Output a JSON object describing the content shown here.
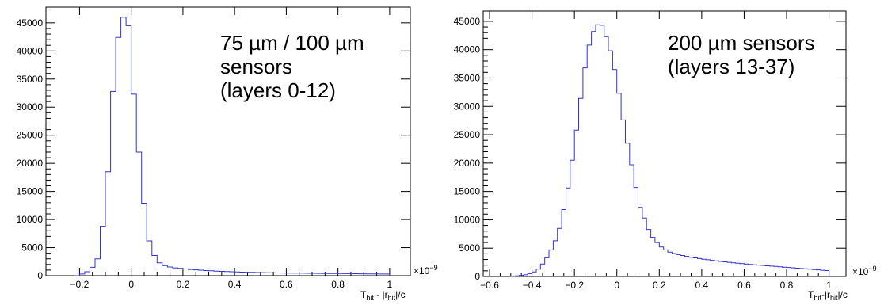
{
  "chart_data": [
    {
      "type": "histogram",
      "annotation": [
        "75 µm / 100 µm",
        "sensors",
        "(layers 0-12)"
      ],
      "xlabel": {
        "main": "T",
        "sub1": "hit",
        "mid": " - |r",
        "sub2": "hit",
        "tail": "|/c"
      },
      "x_exponent_label": "×10",
      "x_exponent_power": "−9",
      "xlim": [
        -0.33,
        1.08
      ],
      "ylim": [
        0,
        47800
      ],
      "x_ticks": [
        -0.2,
        0,
        0.2,
        0.4,
        0.6,
        0.8,
        1
      ],
      "x_tick_labels": [
        "−0.2",
        "0",
        "0.2",
        "0.4",
        "0.6",
        "0.8",
        "1"
      ],
      "y_ticks": [
        0,
        5000,
        10000,
        15000,
        20000,
        25000,
        30000,
        35000,
        40000,
        45000
      ],
      "y_tick_labels": [
        "0",
        "5000",
        "10000",
        "15000",
        "20000",
        "25000",
        "30000",
        "35000",
        "40000",
        "45000"
      ],
      "bin_width": 0.02,
      "bin_start": -0.22,
      "values": [
        0,
        300,
        700,
        1500,
        3000,
        8800,
        18500,
        32800,
        42400,
        46000,
        44500,
        32300,
        22000,
        12900,
        6200,
        3600,
        2300,
        1800,
        1550,
        1400,
        1300,
        1200,
        1120,
        1050,
        980,
        920,
        870,
        820,
        780,
        740,
        700,
        670,
        640,
        610,
        590,
        570,
        550,
        530,
        510,
        490,
        480,
        470,
        460,
        450,
        440,
        430,
        420,
        410,
        400,
        400,
        390,
        380,
        370,
        360,
        350,
        340,
        330,
        320,
        310,
        300,
        290
      ]
    },
    {
      "type": "histogram",
      "annotation": [
        "200 µm sensors",
        "(layers 13-37)"
      ],
      "xlabel": {
        "main": "T",
        "sub1": "hit",
        "mid": "-|r",
        "sub2": "hit",
        "tail": "|/c"
      },
      "x_exponent_label": "×10",
      "x_exponent_power": "−9",
      "xlim": [
        -0.63,
        1.08
      ],
      "ylim": [
        0,
        46800
      ],
      "x_ticks": [
        -0.6,
        -0.4,
        -0.2,
        0,
        0.2,
        0.4,
        0.6,
        0.8,
        1
      ],
      "x_tick_labels": [
        "−0.6",
        "−0.4",
        "−0.2",
        "0",
        "0.2",
        "0.4",
        "0.6",
        "0.8",
        "1"
      ],
      "y_ticks": [
        0,
        5000,
        10000,
        15000,
        20000,
        25000,
        30000,
        35000,
        40000,
        45000
      ],
      "y_tick_labels": [
        "0",
        "5000",
        "10000",
        "15000",
        "20000",
        "25000",
        "30000",
        "35000",
        "40000",
        "45000"
      ],
      "bin_width": 0.02,
      "bin_start": -0.5,
      "values": [
        0,
        100,
        200,
        300,
        500,
        800,
        1300,
        2200,
        3300,
        4700,
        6300,
        8500,
        11800,
        15600,
        20500,
        25800,
        31400,
        36800,
        40800,
        43200,
        44400,
        44300,
        42300,
        39800,
        36500,
        32300,
        27600,
        23500,
        19700,
        15700,
        12200,
        10300,
        8300,
        6900,
        6000,
        5200,
        4700,
        4300,
        4050,
        3850,
        3700,
        3550,
        3400,
        3280,
        3160,
        3050,
        2950,
        2850,
        2750,
        2660,
        2580,
        2500,
        2420,
        2340,
        2270,
        2200,
        2130,
        2070,
        2010,
        1950,
        1890,
        1830,
        1770,
        1710,
        1650,
        1590,
        1530,
        1470,
        1410,
        1350,
        1290,
        1230,
        1170,
        1110,
        1050
      ]
    }
  ]
}
